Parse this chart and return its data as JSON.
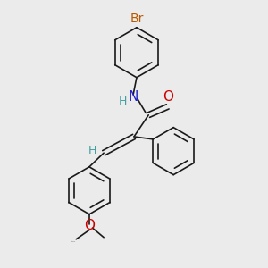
{
  "background_color": "#ebebeb",
  "bond_color": "#1a1a1a",
  "bond_width": 1.2,
  "atom_colors": {
    "Br": "#b85800",
    "N": "#2020cc",
    "O": "#cc0000",
    "H": "#40a0a0",
    "C": "#1a1a1a"
  },
  "font_size": 9
}
